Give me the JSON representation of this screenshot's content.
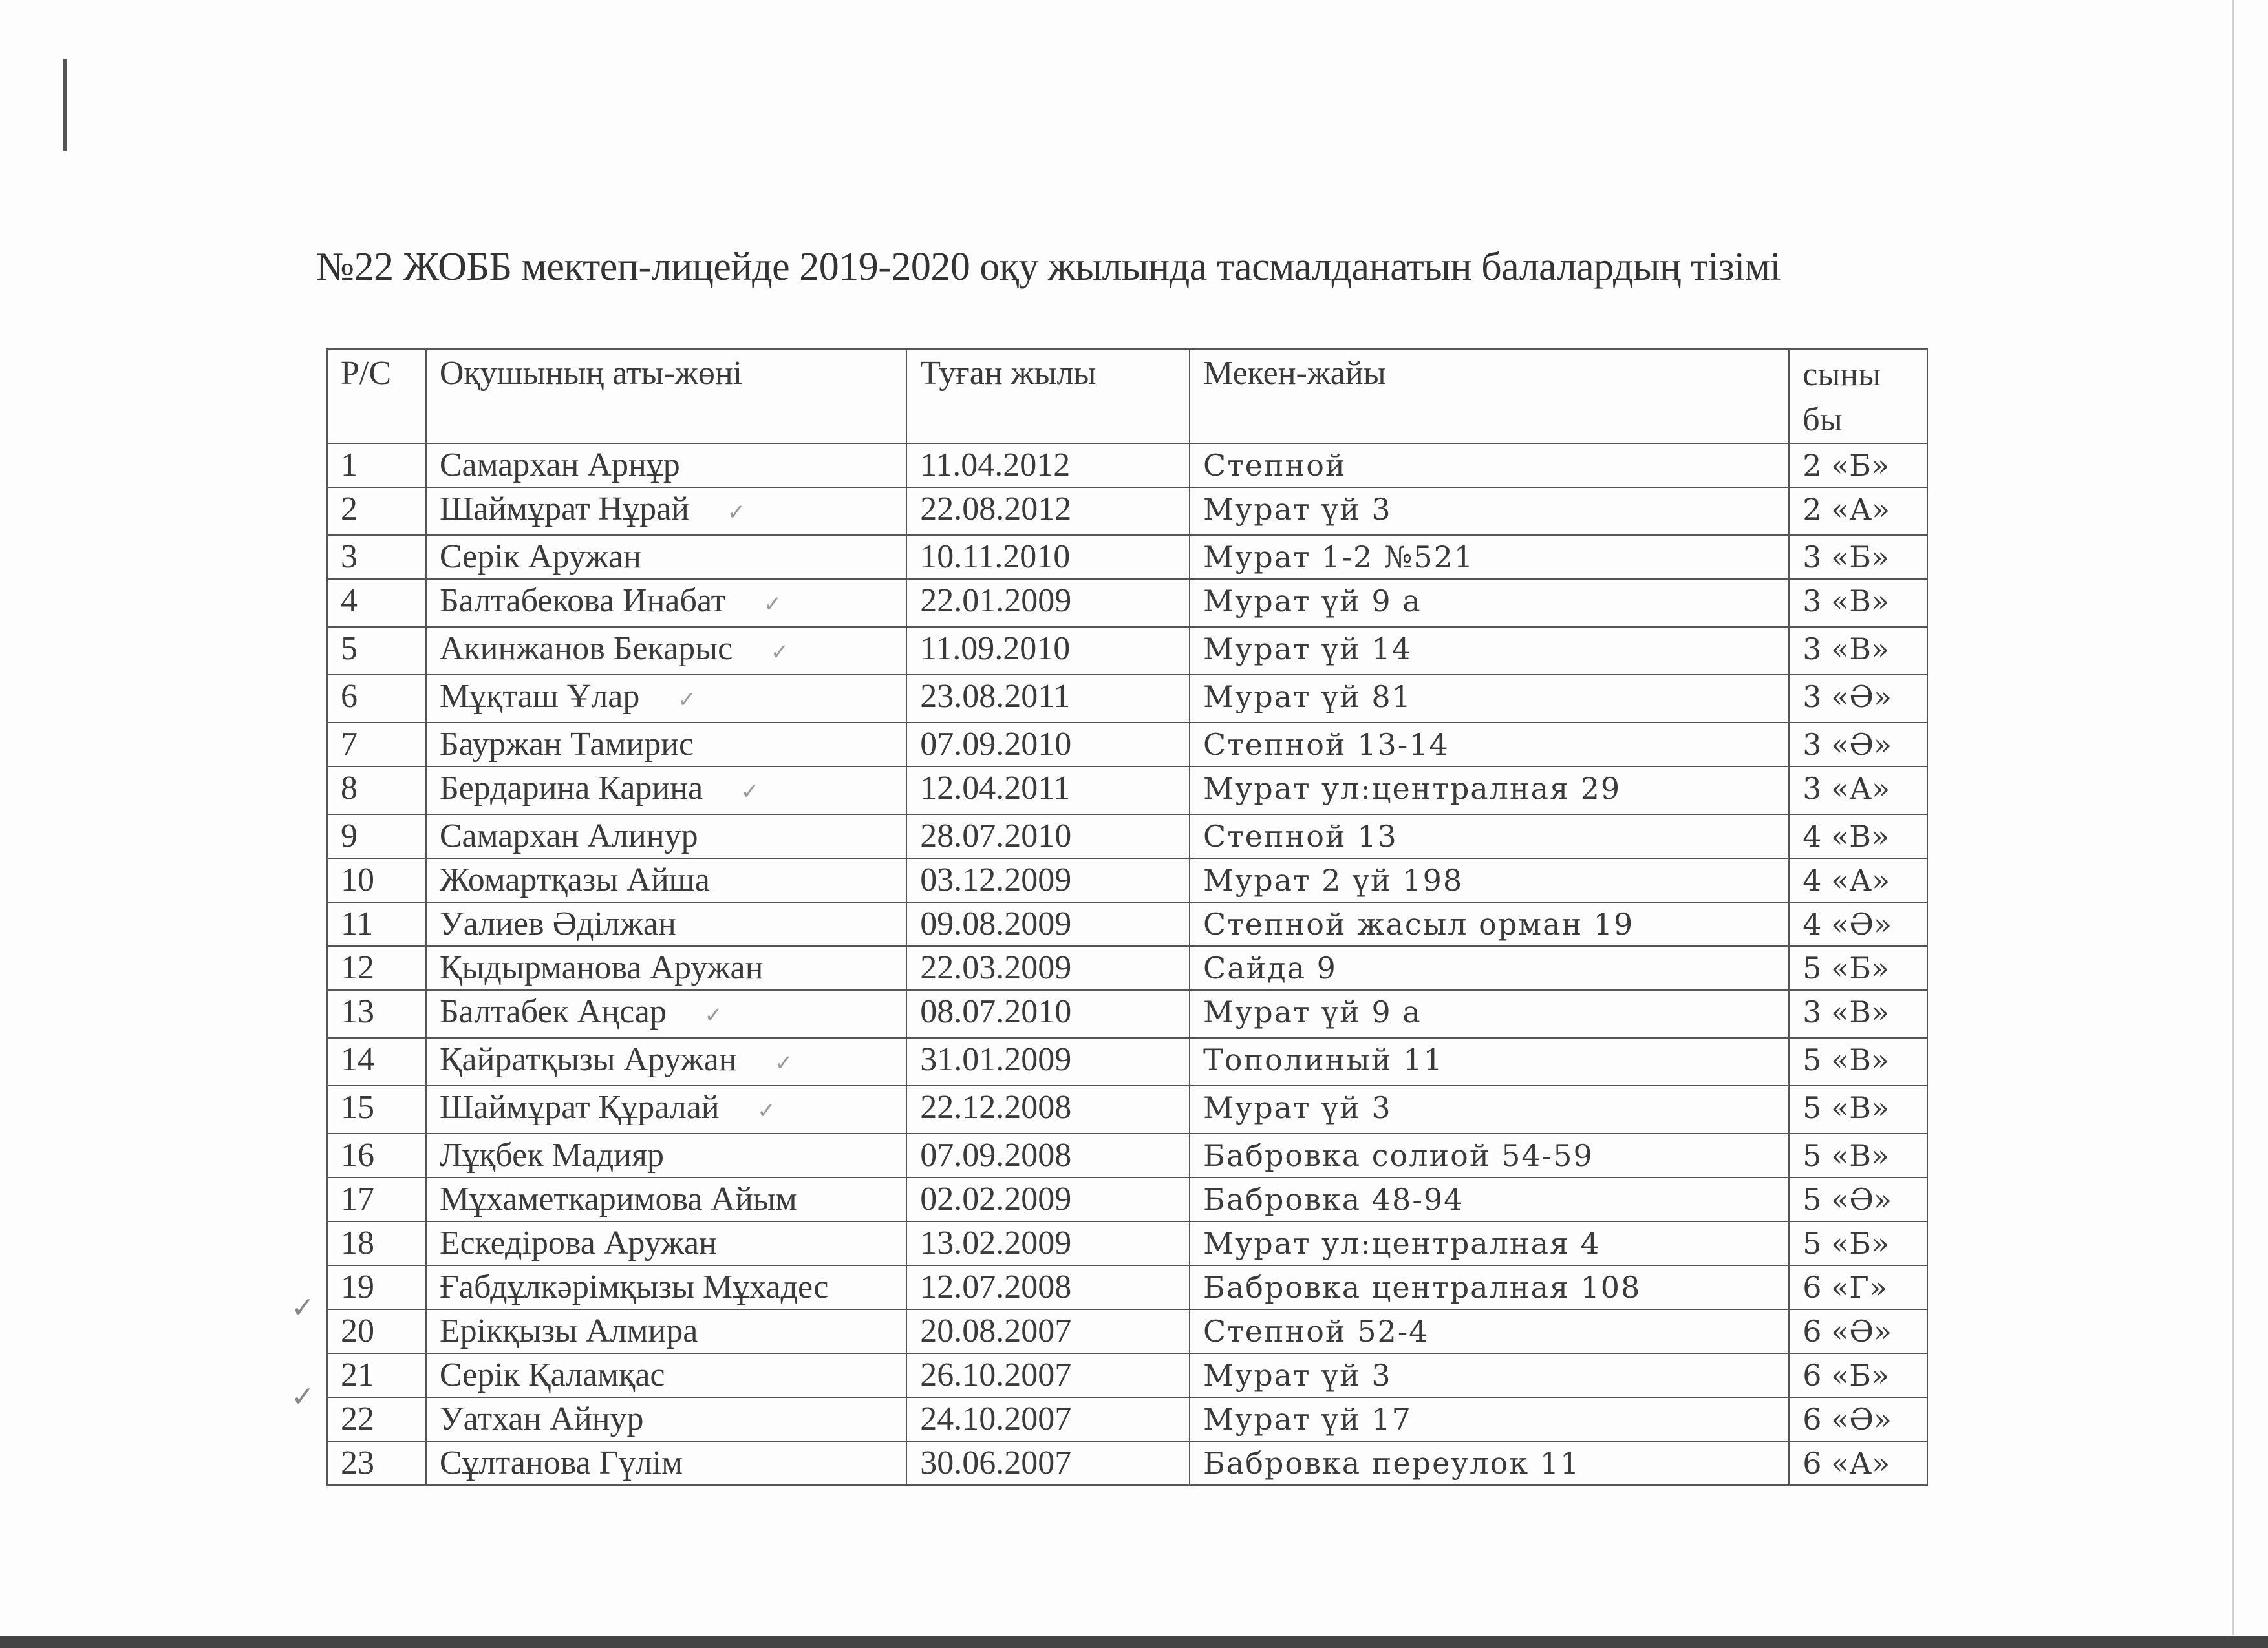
{
  "document": {
    "title": "№22 ЖОББ мектеп-лицейде 2019-2020 оқу жылында тасмалданатын балалардың тізімі",
    "table": {
      "headers": {
        "num": "Р/С",
        "name": "Оқушының аты-жөні",
        "birth": "Туған жылы",
        "address": "Мекен-жайы",
        "class_line1": "сыны",
        "class_line2": "бы"
      },
      "rows": [
        {
          "num": "1",
          "name": "Самархан Арнұр",
          "birth": "11.04.2012",
          "address": "Степной",
          "class": "2 «Б»",
          "check": false,
          "margin_check": false
        },
        {
          "num": "2",
          "name": "Шаймұрат Нұрай",
          "birth": "22.08.2012",
          "address": "Мурат үй 3",
          "class": "2 «А»",
          "check": true,
          "margin_check": false
        },
        {
          "num": "3",
          "name": "Серік Аружан",
          "birth": "10.11.2010",
          "address": "Мурат 1-2 №521",
          "class": "3 «Б»",
          "check": false,
          "margin_check": false
        },
        {
          "num": "4",
          "name": "Балтабекова Инабат",
          "birth": "22.01.2009",
          "address": "Мурат үй  9 а",
          "class": "3 «В»",
          "check": true,
          "margin_check": false
        },
        {
          "num": "5",
          "name": "Акинжанов Бекарыс",
          "birth": "11.09.2010",
          "address": "Мурат үй 14",
          "class": "3 «В»",
          "check": true,
          "margin_check": false
        },
        {
          "num": "6",
          "name": "Мұқташ Ұлар",
          "birth": "23.08.2011",
          "address": "Мурат үй 81",
          "class": "3 «Ә»",
          "check": true,
          "margin_check": false
        },
        {
          "num": "7",
          "name": "Бауржан Тамирис",
          "birth": "07.09.2010",
          "address": "Степной 13-14",
          "class": "3 «Ә»",
          "check": false,
          "margin_check": false
        },
        {
          "num": "8",
          "name": "Бердарина Карина",
          "birth": "12.04.2011",
          "address": "Мурат ул:централная 29",
          "class": "3 «А»",
          "check": true,
          "margin_check": false
        },
        {
          "num": "9",
          "name": "Самархан Алинур",
          "birth": "28.07.2010",
          "address": "Степной 13",
          "class": "4 «В»",
          "check": false,
          "margin_check": false
        },
        {
          "num": "10",
          "name": "Жомартқазы Айша",
          "birth": "03.12.2009",
          "address": "Мурат 2 үй 198",
          "class": "4 «А»",
          "check": false,
          "margin_check": false
        },
        {
          "num": "11",
          "name": "Уалиев Әділжан",
          "birth": "09.08.2009",
          "address": "Степной жасыл орман 19",
          "class": "4 «Ә»",
          "check": false,
          "margin_check": false
        },
        {
          "num": "12",
          "name": "Қыдырманова Аружан",
          "birth": "22.03.2009",
          "address": "Сайда 9",
          "class": "5 «Б»",
          "check": false,
          "margin_check": false
        },
        {
          "num": "13",
          "name": "Балтабек Аңсар",
          "birth": "08.07.2010",
          "address": "Мурат  үй 9 а",
          "class": "3 «В»",
          "check": true,
          "margin_check": false
        },
        {
          "num": "14",
          "name": "Қайратқызы Аружан",
          "birth": "31.01.2009",
          "address": "Тополиный 11",
          "class": "5 «В»",
          "check": true,
          "margin_check": false
        },
        {
          "num": "15",
          "name": "Шаймұрат Құралай",
          "birth": "22.12.2008",
          "address": "Мурат үй 3",
          "class": "5 «В»",
          "check": true,
          "margin_check": false
        },
        {
          "num": "16",
          "name": "Лұқбек Мадияр",
          "birth": "07.09.2008",
          "address": "Бабровка солиой  54-59",
          "class": "5 «В»",
          "check": false,
          "margin_check": false
        },
        {
          "num": "17",
          "name": "Мұхаметкаримова Айым",
          "birth": "02.02.2009",
          "address": "Бабровка 48-94",
          "class": "5 «Ә»",
          "check": false,
          "margin_check": false
        },
        {
          "num": "18",
          "name": "Ескедірова Аружан",
          "birth": "13.02.2009",
          "address": "Мурат ул:централная 4",
          "class": "5 «Б»",
          "check": false,
          "margin_check": false
        },
        {
          "num": "19",
          "name": "Ғабдұлкәрімқызы Мұхадес",
          "birth": "12.07.2008",
          "address": "Бабровка  централная 108",
          "class": "6 «Г»",
          "check": false,
          "margin_check": false
        },
        {
          "num": "20",
          "name": "Ерікқызы Алмира",
          "birth": "20.08.2007",
          "address": "Степной  52-4",
          "class": "6 «Ә»",
          "check": false,
          "margin_check": true
        },
        {
          "num": "21",
          "name": "Серік Қаламқас",
          "birth": "26.10.2007",
          "address": "Мурат үй 3",
          "class": "6 «Б»",
          "check": false,
          "margin_check": false
        },
        {
          "num": "22",
          "name": "Уатхан Айнур",
          "birth": "24.10.2007",
          "address": "Мурат үй 17",
          "class": "6 «Ә»",
          "check": false,
          "margin_check": true
        },
        {
          "num": "23",
          "name": "Сұлтанова Гүлім",
          "birth": "30.06.2007",
          "address": "Бабровка переулок 11",
          "class": "6 «А»",
          "check": false,
          "margin_check": false
        }
      ]
    }
  }
}
